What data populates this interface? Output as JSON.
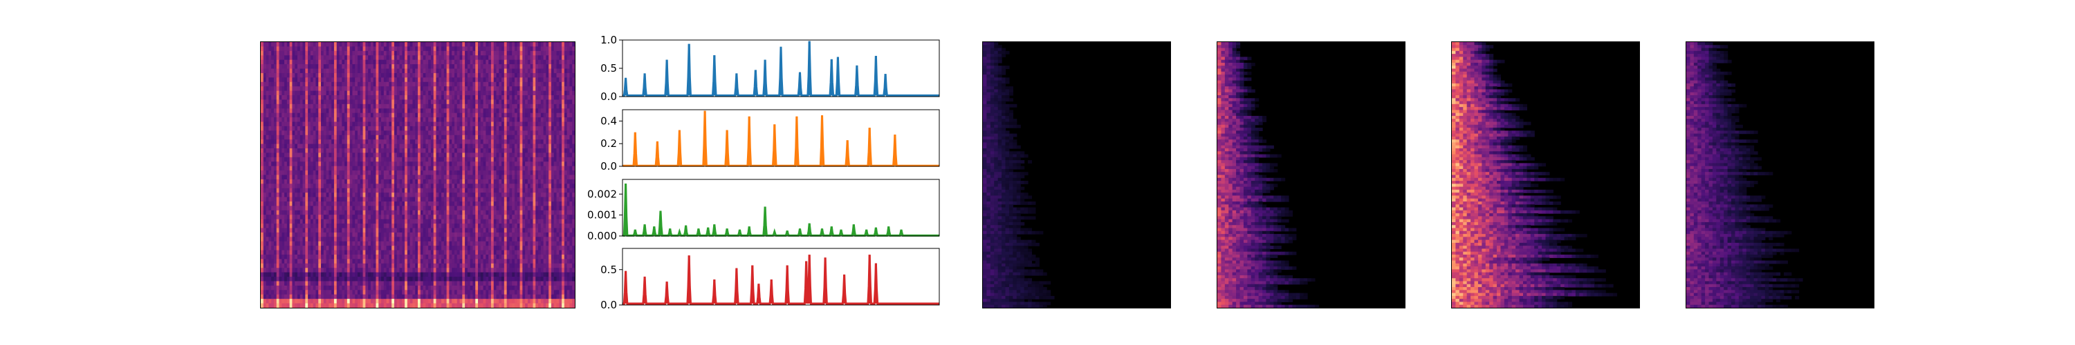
{
  "chart_data": [
    {
      "type": "heatmap",
      "title": "",
      "description_colormap": "magma",
      "pattern": "vertical-striped",
      "stripe_count": 22
    },
    {
      "type": "line",
      "title": "",
      "xlabel": "",
      "ylabel": "",
      "ylim": [
        0,
        1.0
      ],
      "yticks": [
        "0.0",
        "0.5",
        "1.0"
      ],
      "color": "#1f77b4",
      "baseline": 0.02,
      "peaks": [
        [
          0.01,
          0.33
        ],
        [
          0.07,
          0.41
        ],
        [
          0.14,
          0.65
        ],
        [
          0.21,
          0.93
        ],
        [
          0.29,
          0.73
        ],
        [
          0.36,
          0.41
        ],
        [
          0.42,
          0.47
        ],
        [
          0.45,
          0.65
        ],
        [
          0.5,
          0.88
        ],
        [
          0.56,
          0.43
        ],
        [
          0.59,
          0.98
        ],
        [
          0.66,
          0.66
        ],
        [
          0.68,
          0.7
        ],
        [
          0.74,
          0.55
        ],
        [
          0.8,
          0.72
        ],
        [
          0.83,
          0.4
        ]
      ]
    },
    {
      "type": "line",
      "title": "",
      "xlabel": "",
      "ylabel": "",
      "ylim": [
        0,
        0.5
      ],
      "yticks": [
        "0.0",
        "0.2",
        "0.4"
      ],
      "color": "#ff7f0e",
      "baseline": 0.005,
      "peaks": [
        [
          0.04,
          0.3
        ],
        [
          0.11,
          0.22
        ],
        [
          0.18,
          0.32
        ],
        [
          0.26,
          0.49
        ],
        [
          0.33,
          0.32
        ],
        [
          0.4,
          0.44
        ],
        [
          0.48,
          0.37
        ],
        [
          0.55,
          0.44
        ],
        [
          0.63,
          0.45
        ],
        [
          0.71,
          0.23
        ],
        [
          0.78,
          0.34
        ],
        [
          0.86,
          0.28
        ]
      ]
    },
    {
      "type": "line",
      "title": "",
      "xlabel": "",
      "ylabel": "",
      "ylim": [
        0,
        0.0027
      ],
      "yticks": [
        "0.000",
        "0.001",
        "0.002"
      ],
      "color": "#2ca02c",
      "baseline": 2e-05,
      "peaks": [
        [
          0.01,
          0.0025
        ],
        [
          0.04,
          0.0003
        ],
        [
          0.07,
          0.00055
        ],
        [
          0.1,
          0.00045
        ],
        [
          0.12,
          0.0012
        ],
        [
          0.15,
          0.00035
        ],
        [
          0.18,
          0.0002
        ],
        [
          0.2,
          0.0005
        ],
        [
          0.24,
          0.00035
        ],
        [
          0.27,
          0.0004
        ],
        [
          0.29,
          0.00055
        ],
        [
          0.33,
          0.00035
        ],
        [
          0.37,
          0.0003
        ],
        [
          0.4,
          0.00045
        ],
        [
          0.45,
          0.0014
        ],
        [
          0.48,
          0.0002
        ],
        [
          0.52,
          0.00025
        ],
        [
          0.56,
          0.00035
        ],
        [
          0.59,
          0.0006
        ],
        [
          0.63,
          0.00035
        ],
        [
          0.66,
          0.00045
        ],
        [
          0.69,
          0.0003
        ],
        [
          0.73,
          0.00055
        ],
        [
          0.77,
          0.0003
        ],
        [
          0.8,
          0.0004
        ],
        [
          0.84,
          0.00045
        ],
        [
          0.88,
          0.0003
        ]
      ]
    },
    {
      "type": "line",
      "title": "",
      "xlabel": "",
      "ylabel": "",
      "ylim": [
        0,
        0.8
      ],
      "yticks": [
        "0.0",
        "0.5"
      ],
      "color": "#d62728",
      "baseline": 0.02,
      "peaks": [
        [
          0.01,
          0.48
        ],
        [
          0.07,
          0.4
        ],
        [
          0.14,
          0.33
        ],
        [
          0.21,
          0.7
        ],
        [
          0.29,
          0.36
        ],
        [
          0.36,
          0.52
        ],
        [
          0.41,
          0.56
        ],
        [
          0.43,
          0.3
        ],
        [
          0.47,
          0.36
        ],
        [
          0.52,
          0.56
        ],
        [
          0.58,
          0.62
        ],
        [
          0.59,
          0.71
        ],
        [
          0.64,
          0.67
        ],
        [
          0.7,
          0.43
        ],
        [
          0.78,
          0.71
        ],
        [
          0.8,
          0.59
        ]
      ]
    },
    {
      "type": "heatmap",
      "title": "",
      "description_colormap": "magma",
      "intensity": 0.45,
      "extent": 0.35
    },
    {
      "type": "heatmap",
      "title": "",
      "description_colormap": "magma",
      "intensity": 0.75,
      "extent": 0.4
    },
    {
      "type": "heatmap",
      "title": "",
      "description_colormap": "magma",
      "intensity": 1.0,
      "extent": 0.65
    },
    {
      "type": "heatmap",
      "title": "",
      "description_colormap": "magma",
      "intensity": 0.5,
      "extent": 0.55
    }
  ]
}
